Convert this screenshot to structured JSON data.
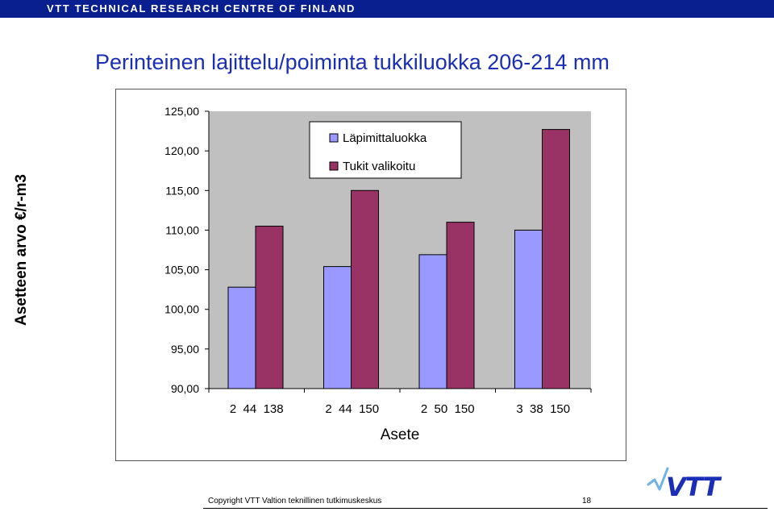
{
  "header": {
    "org_name": "VTT TECHNICAL RESEARCH CENTRE OF FINLAND",
    "bar_color": "#0a1f8f"
  },
  "slide": {
    "title": "Perinteinen lajittelu/poiminta  tukkiluokka 206-214 mm"
  },
  "chart_data": {
    "type": "bar",
    "categories": [
      "2  44  138",
      "2  44  150",
      "2  50  150",
      "3  38  150"
    ],
    "series": [
      {
        "name": "Läpimittaluokka",
        "values": [
          102.8,
          105.4,
          106.9,
          110.0
        ],
        "color": "#9999ff"
      },
      {
        "name": "Tukit valikoitu",
        "values": [
          110.5,
          115.0,
          111.0,
          122.7
        ],
        "color": "#993366"
      }
    ],
    "xlabel": "Asete",
    "ylabel": "Asetteen arvo €/r-m3",
    "ylim": [
      90,
      125
    ],
    "yticks": [
      "90,00",
      "95,00",
      "100,00",
      "105,00",
      "110,00",
      "115,00",
      "120,00",
      "125,00"
    ],
    "plot_background": "#c0c0c0",
    "grid": false,
    "legend_position": "top-center"
  },
  "footer": {
    "copyright": "Copyright VTT Valtion teknillinen tutkimuskeskus",
    "page_number": "18"
  },
  "logo": {
    "text": "VTT",
    "color": "#1a2fb5"
  }
}
